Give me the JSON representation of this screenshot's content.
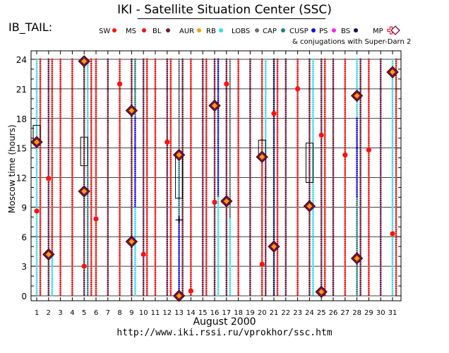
{
  "header": {
    "title": "IKI - Satellite Situation Center (SSC)",
    "panel_label": "IB_TAIL:",
    "conjugation_note": "& conjugations with Super-Darn 2",
    "url": "http://www.iki.rssi.ru/vprokhor/ssc.htm"
  },
  "colors": {
    "SW": "#ff1010",
    "MS": "#ee1111",
    "BL": "#6b1a3a",
    "AUR": "#f0a000",
    "RB": "#30e0e8",
    "LOBS": "#707070",
    "CAP": "#208080",
    "CUSP": "#1010e0",
    "PS": "#ff20ff",
    "BS": "#101050",
    "MP": "#ff2020",
    "conjugation": "#7a1040"
  },
  "chart_data": {
    "type": "scatter",
    "xlabel": "August   2000",
    "ylabel": "Moscow time (hours)",
    "xlim": [
      1,
      31
    ],
    "ylim": [
      0,
      24
    ],
    "x_ticks": [
      "1",
      "2",
      "3",
      "4",
      "5",
      "6",
      "7",
      "8",
      "9",
      "10",
      "11",
      "12",
      "13",
      "14",
      "15",
      "16",
      "17",
      "18",
      "19",
      "20",
      "21",
      "22",
      "23",
      "24",
      "25",
      "26",
      "27",
      "28",
      "29",
      "30",
      "31"
    ],
    "y_ticks": [
      "0",
      "3",
      "6",
      "9",
      "12",
      "15",
      "18",
      "21",
      "24"
    ],
    "legend": [
      {
        "label": "SW",
        "color": "#ff1010",
        "shape": "dot"
      },
      {
        "label": "MS",
        "color": "#ee1111",
        "shape": "dot"
      },
      {
        "label": "BL",
        "color": "#6b1a3a",
        "shape": "dot"
      },
      {
        "label": "AUR",
        "color": "#f0a000",
        "shape": "dot"
      },
      {
        "label": "RB",
        "color": "#30e0e8",
        "shape": "dot"
      },
      {
        "label": "LOBS",
        "color": "#707070",
        "shape": "dot"
      },
      {
        "label": "CAP",
        "color": "#208080",
        "shape": "dot"
      },
      {
        "label": "CUSP",
        "color": "#1010e0",
        "shape": "dot"
      },
      {
        "label": "PS",
        "color": "#ff20ff",
        "shape": "dot"
      },
      {
        "label": "BS",
        "color": "#101050",
        "shape": "dot"
      },
      {
        "label": "MP",
        "color": "#ff2020",
        "shape": "cross"
      },
      {
        "label": "",
        "color": "#7a1040",
        "shape": "diamond"
      }
    ],
    "region_tracks": [
      {
        "day": 1,
        "regions": [
          {
            "region": "RB",
            "start": 0,
            "end": 24
          }
        ]
      },
      {
        "day": 1.3,
        "regions": [
          {
            "region": "MS",
            "start": 0,
            "end": 24
          }
        ]
      },
      {
        "day": 2,
        "regions": [
          {
            "region": "BL",
            "start": 0,
            "end": 24
          }
        ]
      },
      {
        "day": 2.3,
        "regions": [
          {
            "region": "RB",
            "start": 0,
            "end": 4
          },
          {
            "region": "MS",
            "start": 4,
            "end": 24
          }
        ]
      },
      {
        "day": 3,
        "regions": [
          {
            "region": "MS",
            "start": 0,
            "end": 24
          }
        ]
      },
      {
        "day": 4,
        "regions": [
          {
            "region": "MS",
            "start": 0,
            "end": 24
          }
        ]
      },
      {
        "day": 5,
        "regions": [
          {
            "region": "BL",
            "start": 0,
            "end": 24
          }
        ]
      },
      {
        "day": 5.3,
        "regions": [
          {
            "region": "CAP",
            "start": 0,
            "end": 13
          },
          {
            "region": "RB",
            "start": 13,
            "end": 24
          }
        ]
      },
      {
        "day": 5.6,
        "regions": [
          {
            "region": "MS",
            "start": 0,
            "end": 24
          }
        ]
      },
      {
        "day": 6,
        "regions": [
          {
            "region": "MS",
            "start": 0,
            "end": 24
          }
        ]
      },
      {
        "day": 7,
        "regions": [
          {
            "region": "BL",
            "start": 0,
            "end": 24
          }
        ]
      },
      {
        "day": 8,
        "regions": [
          {
            "region": "MS",
            "start": 0,
            "end": 24
          }
        ]
      },
      {
        "day": 9,
        "regions": [
          {
            "region": "BL",
            "start": 0,
            "end": 24
          }
        ]
      },
      {
        "day": 9.3,
        "regions": [
          {
            "region": "RB",
            "start": 0,
            "end": 9
          },
          {
            "region": "CUSP",
            "start": 9,
            "end": 18
          },
          {
            "region": "CAP",
            "start": 18,
            "end": 24
          }
        ]
      },
      {
        "day": 10,
        "regions": [
          {
            "region": "BL",
            "start": 0,
            "end": 24
          }
        ]
      },
      {
        "day": 10.3,
        "regions": [
          {
            "region": "MS",
            "start": 0,
            "end": 24
          }
        ]
      },
      {
        "day": 11,
        "regions": [
          {
            "region": "MS",
            "start": 0,
            "end": 24
          }
        ]
      },
      {
        "day": 12,
        "regions": [
          {
            "region": "BL",
            "start": 0,
            "end": 24
          }
        ]
      },
      {
        "day": 12.3,
        "regions": [
          {
            "region": "MS",
            "start": 0,
            "end": 24
          }
        ]
      },
      {
        "day": 13,
        "regions": [
          {
            "region": "CUSP",
            "start": 0,
            "end": 8
          },
          {
            "region": "CAP",
            "start": 8,
            "end": 15
          },
          {
            "region": "LOBS",
            "start": 15,
            "end": 24
          }
        ]
      },
      {
        "day": 13.3,
        "regions": [
          {
            "region": "BL",
            "start": 0,
            "end": 24
          }
        ]
      },
      {
        "day": 14,
        "regions": [
          {
            "region": "MS",
            "start": 0,
            "end": 24
          }
        ]
      },
      {
        "day": 15,
        "regions": [
          {
            "region": "BL",
            "start": 0,
            "end": 24
          }
        ]
      },
      {
        "day": 15.3,
        "regions": [
          {
            "region": "MS",
            "start": 0,
            "end": 24
          }
        ]
      },
      {
        "day": 16,
        "regions": [
          {
            "region": "BL",
            "start": 0,
            "end": 24
          }
        ]
      },
      {
        "day": 16.3,
        "regions": [
          {
            "region": "CUSP",
            "start": 10,
            "end": 24
          },
          {
            "region": "RB",
            "start": 0,
            "end": 10
          }
        ]
      },
      {
        "day": 17,
        "regions": [
          {
            "region": "BL",
            "start": 0,
            "end": 24
          }
        ]
      },
      {
        "day": 17.3,
        "regions": [
          {
            "region": "RB",
            "start": 0,
            "end": 8
          },
          {
            "region": "LOBS",
            "start": 8,
            "end": 24
          }
        ]
      },
      {
        "day": 18,
        "regions": [
          {
            "region": "MS",
            "start": 0,
            "end": 24
          }
        ]
      },
      {
        "day": 19,
        "regions": [
          {
            "region": "BL",
            "start": 0,
            "end": 24
          }
        ]
      },
      {
        "day": 20,
        "regions": [
          {
            "region": "MS",
            "start": 0,
            "end": 24
          }
        ]
      },
      {
        "day": 20.3,
        "regions": [
          {
            "region": "BL",
            "start": 0,
            "end": 14
          },
          {
            "region": "RB",
            "start": 14,
            "end": 24
          }
        ]
      },
      {
        "day": 21,
        "regions": [
          {
            "region": "BS",
            "start": 0,
            "end": 24
          }
        ]
      },
      {
        "day": 21.3,
        "regions": [
          {
            "region": "MS",
            "start": 0,
            "end": 24
          }
        ]
      },
      {
        "day": 22,
        "regions": [
          {
            "region": "BL",
            "start": 0,
            "end": 24
          }
        ]
      },
      {
        "day": 23,
        "regions": [
          {
            "region": "MS",
            "start": 0,
            "end": 24
          }
        ]
      },
      {
        "day": 24,
        "regions": [
          {
            "region": "BL",
            "start": 0,
            "end": 24
          }
        ]
      },
      {
        "day": 24.3,
        "regions": [
          {
            "region": "RB",
            "start": 0,
            "end": 24
          }
        ]
      },
      {
        "day": 25,
        "regions": [
          {
            "region": "BL",
            "start": 0,
            "end": 24
          }
        ]
      },
      {
        "day": 25.3,
        "regions": [
          {
            "region": "MS",
            "start": 0,
            "end": 24
          }
        ]
      },
      {
        "day": 26,
        "regions": [
          {
            "region": "BL",
            "start": 0,
            "end": 24
          }
        ]
      },
      {
        "day": 27,
        "regions": [
          {
            "region": "MS",
            "start": 0,
            "end": 24
          }
        ]
      },
      {
        "day": 28,
        "regions": [
          {
            "region": "CAP",
            "start": 0,
            "end": 10
          },
          {
            "region": "CUSP",
            "start": 10,
            "end": 18
          },
          {
            "region": "RB",
            "start": 18,
            "end": 24
          }
        ]
      },
      {
        "day": 28.3,
        "regions": [
          {
            "region": "BL",
            "start": 0,
            "end": 24
          }
        ]
      },
      {
        "day": 29,
        "regions": [
          {
            "region": "MS",
            "start": 0,
            "end": 24
          }
        ]
      },
      {
        "day": 30,
        "regions": [
          {
            "region": "BL",
            "start": 0,
            "end": 24
          }
        ]
      },
      {
        "day": 31,
        "regions": [
          {
            "region": "RB",
            "start": 0,
            "end": 24
          }
        ]
      },
      {
        "day": 31.3,
        "regions": [
          {
            "region": "MS",
            "start": 0,
            "end": 24
          }
        ]
      }
    ],
    "red_markers": [
      {
        "day": 1,
        "hour": 8.6
      },
      {
        "day": 2,
        "hour": 11.9
      },
      {
        "day": 5,
        "hour": 3
      },
      {
        "day": 6,
        "hour": 7.8
      },
      {
        "day": 8,
        "hour": 21.5
      },
      {
        "day": 10,
        "hour": 4.2
      },
      {
        "day": 12,
        "hour": 15.6
      },
      {
        "day": 14,
        "hour": 0.5
      },
      {
        "day": 16,
        "hour": 9.5
      },
      {
        "day": 17,
        "hour": 21.5
      },
      {
        "day": 20,
        "hour": 3.2
      },
      {
        "day": 21,
        "hour": 18.5
      },
      {
        "day": 23,
        "hour": 21
      },
      {
        "day": 25,
        "hour": 16.3
      },
      {
        "day": 27,
        "hour": 14.3
      },
      {
        "day": 29,
        "hour": 14.8
      },
      {
        "day": 31,
        "hour": 6.3
      }
    ],
    "conjugations": [
      {
        "day": 1,
        "hour": 15.6
      },
      {
        "day": 2,
        "hour": 4.2
      },
      {
        "day": 5,
        "hour": 23.8
      },
      {
        "day": 5,
        "hour": 10.6
      },
      {
        "day": 9,
        "hour": 18.8
      },
      {
        "day": 9,
        "hour": 5.5
      },
      {
        "day": 13,
        "hour": 14.3
      },
      {
        "day": 13,
        "hour": 0
      },
      {
        "day": 16,
        "hour": 19.3
      },
      {
        "day": 17,
        "hour": 9.6
      },
      {
        "day": 20,
        "hour": 14.1
      },
      {
        "day": 21,
        "hour": 5
      },
      {
        "day": 24,
        "hour": 9.1
      },
      {
        "day": 25,
        "hour": 0.4
      },
      {
        "day": 28,
        "hour": 20.3
      },
      {
        "day": 28,
        "hour": 3.8
      },
      {
        "day": 31,
        "hour": 22.7
      }
    ],
    "boxes": [
      {
        "day": 1,
        "start": 15.6,
        "end": 17.3
      },
      {
        "day": 5,
        "start": 13.2,
        "end": 16.1
      },
      {
        "day": 13,
        "start": 9.9,
        "end": 14.5
      },
      {
        "day": 20,
        "start": 14,
        "end": 15.8
      },
      {
        "day": 24,
        "start": 11.5,
        "end": 15.5
      }
    ],
    "mp_crossings": [
      {
        "day": 13,
        "hour": 7.7
      }
    ]
  }
}
